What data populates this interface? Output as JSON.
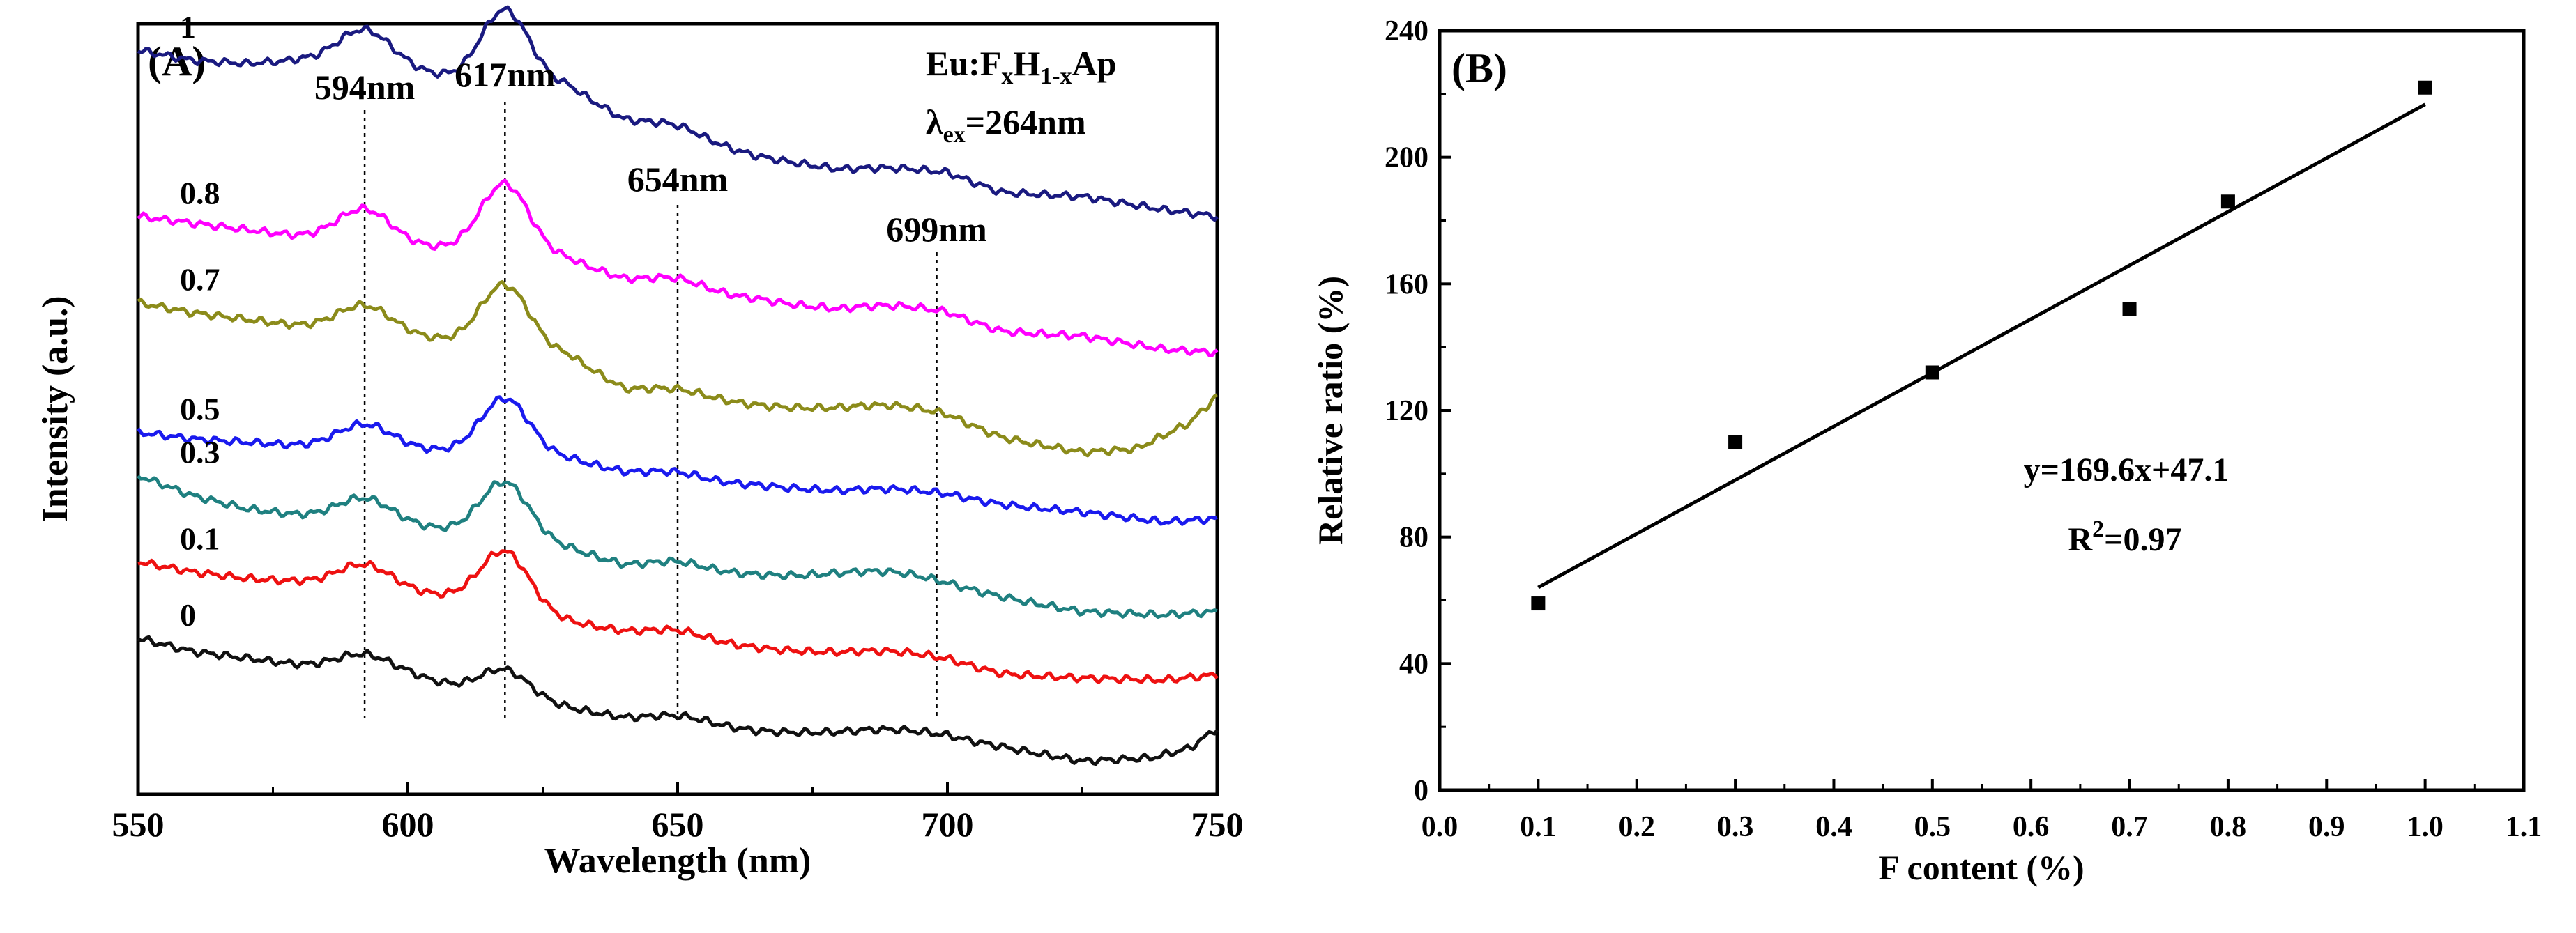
{
  "chart_data": [
    {
      "panel_label": "(A)",
      "type": "line",
      "xlabel": "Wavelength (nm)",
      "ylabel": "Intensity (a.u.)",
      "xlim": [
        550,
        750
      ],
      "x_ticks": [
        "550",
        "600",
        "650",
        "700",
        "750"
      ],
      "legend_text": {
        "formula": "Eu:F",
        "sub1": "x",
        "mid": "H",
        "sub2": "1-x",
        "end": "Ap",
        "lambda": "λ",
        "ex": "ex",
        "ex_value": "=264nm"
      },
      "peaks": [
        {
          "label": "594nm",
          "x": 592
        },
        {
          "label": "617nm",
          "x": 618
        },
        {
          "label": "654nm",
          "x": 650
        },
        {
          "label": "699nm",
          "x": 698
        }
      ],
      "series": [
        {
          "name": "1",
          "color": "#1a1a80",
          "offset": 6.0,
          "base": [
            [
              550,
              4.6
            ],
            [
              560,
              4.45
            ],
            [
              570,
              4.4
            ],
            [
              580,
              4.45
            ],
            [
              600,
              4.3
            ],
            [
              610,
              4.15
            ],
            [
              630,
              4.05
            ],
            [
              640,
              3.55
            ],
            [
              655,
              3.2
            ],
            [
              665,
              3.0
            ],
            [
              680,
              2.75
            ],
            [
              700,
              2.7
            ],
            [
              710,
              2.45
            ],
            [
              725,
              2.4
            ],
            [
              740,
              2.2
            ],
            [
              750,
              2.1
            ]
          ],
          "peaks": [
            [
              592,
              0.55,
              5
            ],
            [
              618,
              1.1,
              4.5
            ],
            [
              650,
              0.15,
              5
            ],
            [
              690,
              0.1,
              10
            ]
          ]
        },
        {
          "name": "0.8",
          "color": "#ff00ff",
          "offset": 4.8,
          "base": [
            [
              550,
              3.3
            ],
            [
              560,
              3.2
            ],
            [
              570,
              3.1
            ],
            [
              580,
              3.0
            ],
            [
              600,
              2.85
            ],
            [
              610,
              2.8
            ],
            [
              630,
              2.65
            ],
            [
              640,
              2.35
            ],
            [
              655,
              2.15
            ],
            [
              665,
              2.05
            ],
            [
              680,
              1.8
            ],
            [
              700,
              1.75
            ],
            [
              710,
              1.55
            ],
            [
              725,
              1.5
            ],
            [
              740,
              1.3
            ],
            [
              750,
              1.25
            ]
          ],
          "peaks": [
            [
              592,
              0.5,
              5
            ],
            [
              618,
              1.05,
              4.5
            ],
            [
              650,
              0.15,
              5
            ],
            [
              690,
              0.18,
              10
            ]
          ]
        },
        {
          "name": "0.7",
          "color": "#8b8b1a",
          "offset": 3.8,
          "base": [
            [
              550,
              3.0
            ],
            [
              560,
              2.85
            ],
            [
              570,
              2.75
            ],
            [
              580,
              2.65
            ],
            [
              600,
              2.5
            ],
            [
              610,
              2.4
            ],
            [
              630,
              2.2
            ],
            [
              640,
              1.7
            ],
            [
              655,
              1.55
            ],
            [
              665,
              1.45
            ],
            [
              680,
              1.3
            ],
            [
              700,
              1.2
            ],
            [
              710,
              0.95
            ],
            [
              725,
              0.75
            ],
            [
              735,
              0.8
            ],
            [
              745,
              1.2
            ],
            [
              750,
              1.6
            ]
          ],
          "peaks": [
            [
              592,
              0.4,
              5
            ],
            [
              618,
              0.95,
              4.5
            ],
            [
              650,
              0.1,
              5
            ],
            [
              690,
              0.2,
              10
            ]
          ]
        },
        {
          "name": "0.5",
          "color": "#1a1aee",
          "offset": 2.8,
          "base": [
            [
              550,
              2.05
            ],
            [
              560,
              1.95
            ],
            [
              570,
              1.9
            ],
            [
              580,
              1.85
            ],
            [
              600,
              1.8
            ],
            [
              610,
              1.75
            ],
            [
              630,
              1.65
            ],
            [
              640,
              1.45
            ],
            [
              655,
              1.3
            ],
            [
              665,
              1.25
            ],
            [
              680,
              1.1
            ],
            [
              700,
              1.05
            ],
            [
              710,
              0.95
            ],
            [
              725,
              0.85
            ],
            [
              740,
              0.7
            ],
            [
              750,
              0.75
            ]
          ],
          "peaks": [
            [
              592,
              0.35,
              5
            ],
            [
              618,
              0.85,
              4.5
            ],
            [
              650,
              0.1,
              5
            ],
            [
              690,
              0.12,
              10
            ]
          ]
        },
        {
          "name": "0.3",
          "color": "#1f8080",
          "offset": 1.8,
          "base": [
            [
              550,
              2.4
            ],
            [
              560,
              2.1
            ],
            [
              570,
              1.9
            ],
            [
              580,
              1.8
            ],
            [
              600,
              1.65
            ],
            [
              610,
              1.55
            ],
            [
              630,
              1.3
            ],
            [
              640,
              1.05
            ],
            [
              655,
              0.95
            ],
            [
              665,
              0.9
            ],
            [
              680,
              0.8
            ],
            [
              700,
              0.65
            ],
            [
              710,
              0.55
            ],
            [
              725,
              0.35
            ],
            [
              740,
              0.3
            ],
            [
              750,
              0.35
            ]
          ],
          "peaks": [
            [
              592,
              0.35,
              5
            ],
            [
              618,
              0.85,
              4.5
            ],
            [
              650,
              0.12,
              5
            ],
            [
              690,
              0.22,
              10
            ]
          ]
        },
        {
          "name": "0.1",
          "color": "#ee1111",
          "offset": 0.9,
          "base": [
            [
              550,
              2.0
            ],
            [
              560,
              1.85
            ],
            [
              570,
              1.75
            ],
            [
              580,
              1.7
            ],
            [
              600,
              1.55
            ],
            [
              610,
              1.45
            ],
            [
              630,
              1.1
            ],
            [
              640,
              0.95
            ],
            [
              655,
              0.8
            ],
            [
              665,
              0.7
            ],
            [
              680,
              0.55
            ],
            [
              700,
              0.45
            ],
            [
              710,
              0.3
            ],
            [
              725,
              0.25
            ],
            [
              740,
              0.22
            ],
            [
              750,
              0.3
            ]
          ],
          "peaks": [
            [
              592,
              0.35,
              5
            ],
            [
              618,
              0.85,
              4.5
            ],
            [
              650,
              0.12,
              5
            ],
            [
              690,
              0.15,
              10
            ]
          ]
        },
        {
          "name": "0",
          "color": "#111111",
          "offset": 0.0,
          "base": [
            [
              550,
              1.75
            ],
            [
              560,
              1.55
            ],
            [
              570,
              1.45
            ],
            [
              580,
              1.35
            ],
            [
              600,
              1.2
            ],
            [
              610,
              1.0
            ],
            [
              630,
              0.7
            ],
            [
              640,
              0.55
            ],
            [
              655,
              0.45
            ],
            [
              665,
              0.35
            ],
            [
              680,
              0.25
            ],
            [
              700,
              0.2
            ],
            [
              710,
              0.1
            ],
            [
              725,
              -0.1
            ],
            [
              738,
              -0.05
            ],
            [
              745,
              0.1
            ],
            [
              750,
              0.4
            ]
          ],
          "peaks": [
            [
              592,
              0.25,
              5
            ],
            [
              618,
              0.4,
              4.5
            ],
            [
              650,
              0.1,
              5
            ],
            [
              690,
              0.15,
              10
            ]
          ]
        }
      ]
    },
    {
      "panel_label": "(B)",
      "type": "scatter",
      "xlabel": "F content (%)",
      "ylabel": "Relative ratio (%)",
      "xlim": [
        0.0,
        1.1
      ],
      "ylim": [
        0,
        240
      ],
      "x_ticks": [
        "0.0",
        "0.1",
        "0.2",
        "0.3",
        "0.4",
        "0.5",
        "0.6",
        "0.7",
        "0.8",
        "0.9",
        "1.0",
        "1.1"
      ],
      "y_ticks": [
        "0",
        "40",
        "80",
        "120",
        "160",
        "200",
        "240"
      ],
      "points": [
        {
          "x": 0.1,
          "y": 59
        },
        {
          "x": 0.3,
          "y": 110
        },
        {
          "x": 0.5,
          "y": 132
        },
        {
          "x": 0.7,
          "y": 152
        },
        {
          "x": 0.8,
          "y": 186
        },
        {
          "x": 1.0,
          "y": 222
        }
      ],
      "fit": {
        "slope": 169.6,
        "intercept": 47.1,
        "x_range": [
          0.1,
          1.0
        ]
      },
      "equation": "y=169.6x+47.1",
      "r2": {
        "prefix": "R",
        "sup": "2",
        "suffix": "=0.97"
      }
    }
  ]
}
